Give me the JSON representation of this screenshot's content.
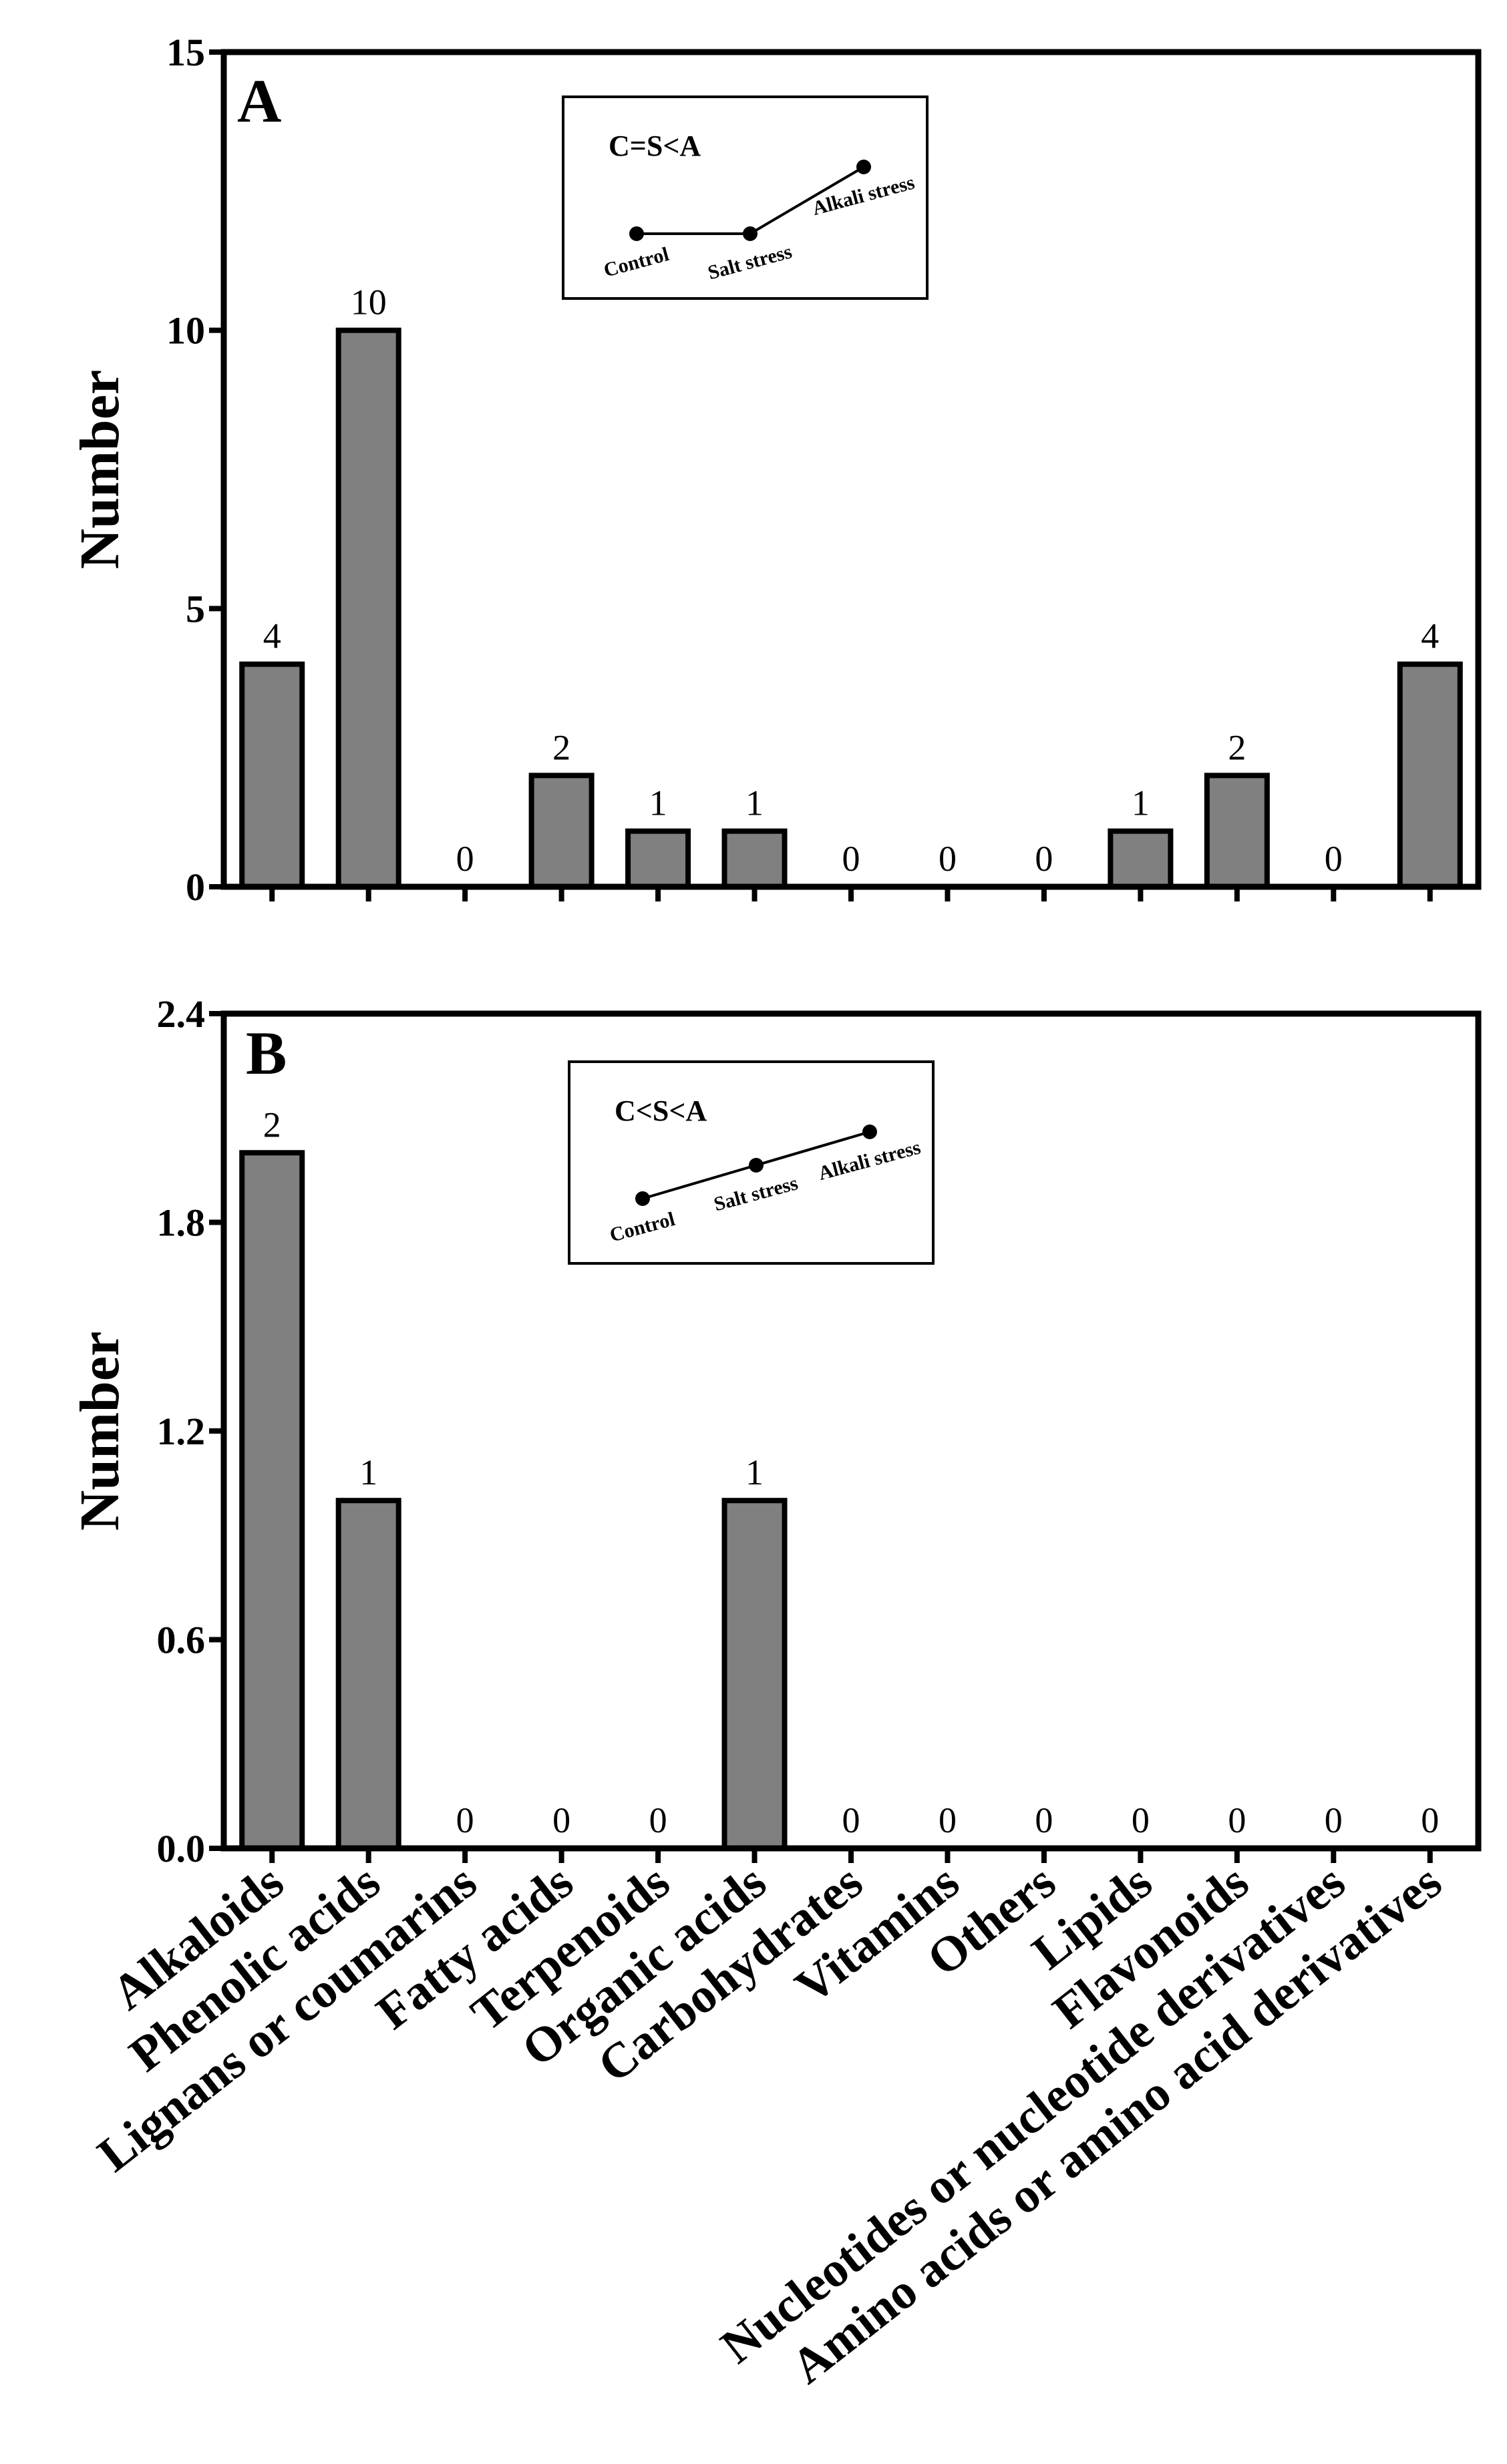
{
  "colors": {
    "bar": "#808080",
    "axis": "#000000",
    "background": "#ffffff"
  },
  "chart_data": [
    {
      "type": "bar",
      "panel": "A",
      "ylabel": "Number",
      "xlabel": "",
      "ylim": [
        0,
        15
      ],
      "yticks": [
        "0",
        "5",
        "10",
        "15"
      ],
      "categories": [
        "Alkaloids",
        "Phenolic acids",
        "Lignans or coumarins",
        "Fatty acids",
        "Terpenoids",
        "Organic acids",
        "Carbohydrates",
        "Vitamins",
        "Others",
        "Lipids",
        "Flavonoids",
        "Nucleotides or nucleotide derivatives",
        "Amino acids or amino acid derivatives"
      ],
      "values": [
        4,
        10,
        0,
        2,
        1,
        1,
        0,
        0,
        0,
        1,
        2,
        0,
        4
      ],
      "inset": {
        "title": "C=S<A",
        "points": [
          {
            "label": "Control",
            "level": 1
          },
          {
            "label": "Salt stress",
            "level": 1
          },
          {
            "label": "Alkali stress",
            "level": 2
          }
        ]
      }
    },
    {
      "type": "bar",
      "panel": "B",
      "ylabel": "Number",
      "xlabel": "",
      "ylim": [
        0,
        2.4
      ],
      "yticks": [
        "0.0",
        "0.6",
        "1.2",
        "1.8",
        "2.4"
      ],
      "categories": [
        "Alkaloids",
        "Phenolic acids",
        "Lignans or coumarins",
        "Fatty acids",
        "Terpenoids",
        "Organic acids",
        "Carbohydrates",
        "Vitamins",
        "Others",
        "Lipids",
        "Flavonoids",
        "Nucleotides or nucleotide derivatives",
        "Amino acids or amino acid derivatives"
      ],
      "values": [
        2,
        1,
        0,
        0,
        0,
        1,
        0,
        0,
        0,
        0,
        0,
        0,
        0
      ],
      "inset": {
        "title": "C<S<A",
        "points": [
          {
            "label": "Control",
            "level": 1
          },
          {
            "label": "Salt stress",
            "level": 2
          },
          {
            "label": "Alkali stress",
            "level": 3
          }
        ]
      }
    }
  ]
}
